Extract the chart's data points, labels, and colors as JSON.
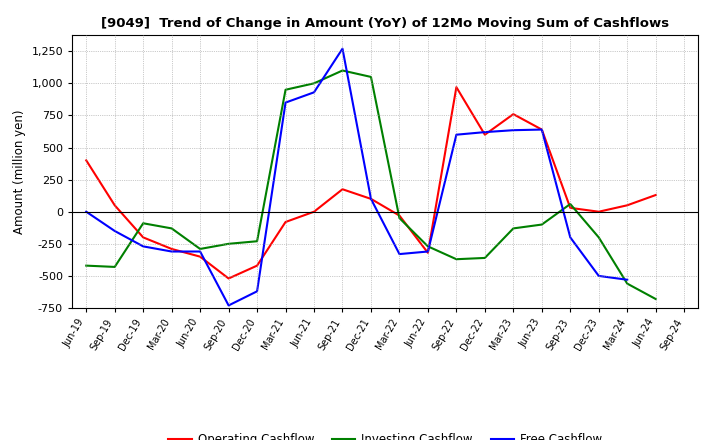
{
  "title": "[9049]  Trend of Change in Amount (YoY) of 12Mo Moving Sum of Cashflows",
  "ylabel": "Amount (million yen)",
  "x_labels": [
    "Jun-19",
    "Sep-19",
    "Dec-19",
    "Mar-20",
    "Jun-20",
    "Sep-20",
    "Dec-20",
    "Mar-21",
    "Jun-21",
    "Sep-21",
    "Dec-21",
    "Mar-22",
    "Jun-22",
    "Sep-22",
    "Dec-22",
    "Mar-23",
    "Jun-23",
    "Sep-23",
    "Dec-23",
    "Mar-24",
    "Jun-24",
    "Sep-24"
  ],
  "operating": [
    400,
    50,
    -200,
    -290,
    -350,
    -520,
    -420,
    -80,
    0,
    175,
    100,
    -30,
    -320,
    970,
    600,
    760,
    640,
    30,
    0,
    50,
    130,
    null
  ],
  "investing": [
    -420,
    -430,
    -90,
    -130,
    -290,
    -250,
    -230,
    950,
    1000,
    1100,
    1050,
    -50,
    -270,
    -370,
    -360,
    -130,
    -100,
    60,
    -200,
    -560,
    -680,
    null
  ],
  "free": [
    0,
    -150,
    -270,
    -310,
    -310,
    -730,
    -620,
    850,
    930,
    1270,
    100,
    -330,
    -310,
    600,
    620,
    635,
    640,
    -200,
    -500,
    -530,
    null,
    null
  ],
  "operating_color": "#ff0000",
  "investing_color": "#008000",
  "free_color": "#0000ff",
  "ylim": [
    -750,
    1375
  ],
  "yticks": [
    -750,
    -500,
    -250,
    0,
    250,
    500,
    750,
    1000,
    1250
  ],
  "background_color": "#ffffff",
  "grid_color": "#aaaaaa"
}
